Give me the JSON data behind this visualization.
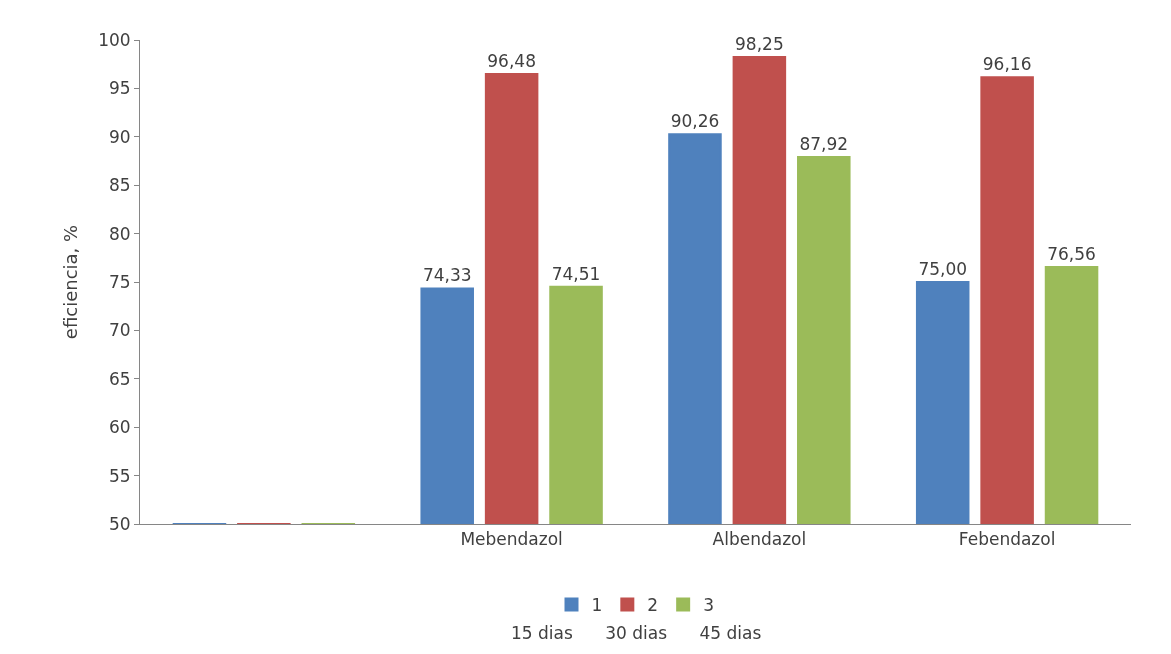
{
  "chart_data": {
    "type": "bar",
    "ylabel": "eficiencia, %",
    "categories": [
      null,
      "Mebendazol",
      "Albendazol",
      "Febendazol"
    ],
    "series": [
      {
        "name": "1",
        "color": "#4f81bd",
        "values": [
          50,
          74.33,
          90.26,
          75.0
        ],
        "value_labels": [
          null,
          "74,33",
          "90,26",
          "75,00"
        ]
      },
      {
        "name": "2",
        "color": "#c0504d",
        "values": [
          50,
          96.48,
          98.25,
          96.16
        ],
        "value_labels": [
          null,
          "96,48",
          "98,25",
          "96,16"
        ]
      },
      {
        "name": "3",
        "color": "#9bbb59",
        "values": [
          50,
          74.51,
          87.92,
          76.56
        ],
        "value_labels": [
          null,
          "74,51",
          "87,92",
          "76,56"
        ]
      }
    ],
    "ylim": [
      50,
      100
    ],
    "yticks": [
      50,
      55,
      60,
      65,
      70,
      75,
      80,
      85,
      90,
      95,
      100
    ],
    "legend": "bottom",
    "annotations": [
      "15 dias      30 dias      45 dias"
    ]
  }
}
